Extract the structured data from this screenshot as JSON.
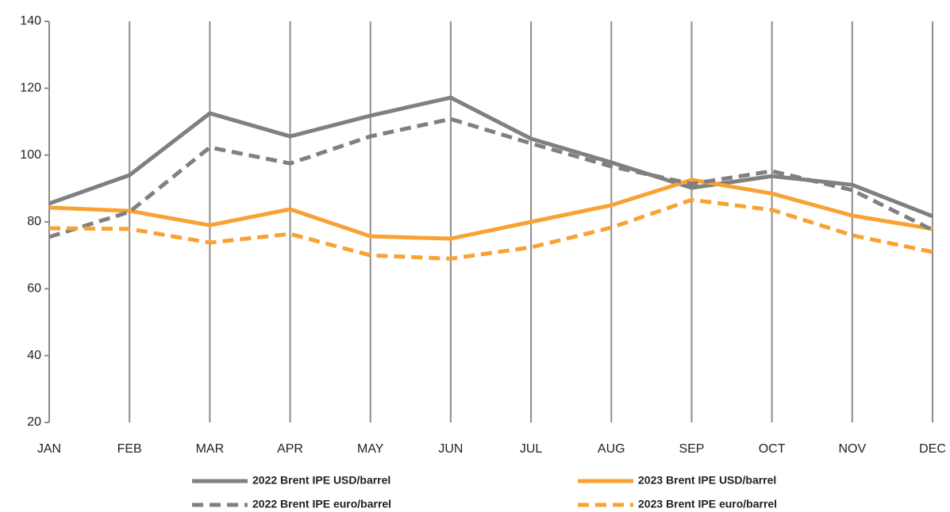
{
  "chart_data": {
    "type": "line",
    "categories": [
      "JAN",
      "FEB",
      "MAR",
      "APR",
      "MAY",
      "JUN",
      "JUL",
      "AUG",
      "SEP",
      "OCT",
      "NOV",
      "DEC"
    ],
    "series": [
      {
        "name": "2022 Brent IPE USD/barrel",
        "color": "#808080",
        "dashed": false,
        "values": [
          85.5,
          94,
          112.5,
          105.6,
          111.8,
          117.2,
          104.9,
          97.8,
          90.2,
          93.7,
          91.1,
          81.7
        ]
      },
      {
        "name": "2023 Brent IPE USD/barrel",
        "color": "#f9a233",
        "dashed": false,
        "values": [
          84.3,
          83.3,
          79,
          83.8,
          75.7,
          75,
          80,
          85,
          92.6,
          88.5,
          81.9,
          77.9
        ]
      },
      {
        "name": "2022 Brent IPE euro/barrel",
        "color": "#808080",
        "dashed": true,
        "values": [
          75.5,
          83,
          102.3,
          97.5,
          105.6,
          110.8,
          103.5,
          96.6,
          91.4,
          95.2,
          89.5,
          77.6
        ]
      },
      {
        "name": "2023 Brent IPE euro/barrel",
        "color": "#f9a233",
        "dashed": true,
        "values": [
          78.1,
          77.9,
          73.8,
          76.4,
          70,
          69,
          72.4,
          78.3,
          86.6,
          83.6,
          76,
          71
        ]
      }
    ],
    "ylim": [
      20,
      140
    ],
    "yticks": [
      20,
      40,
      60,
      80,
      100,
      120,
      140
    ],
    "xgrid": true,
    "legend": "bottom"
  }
}
